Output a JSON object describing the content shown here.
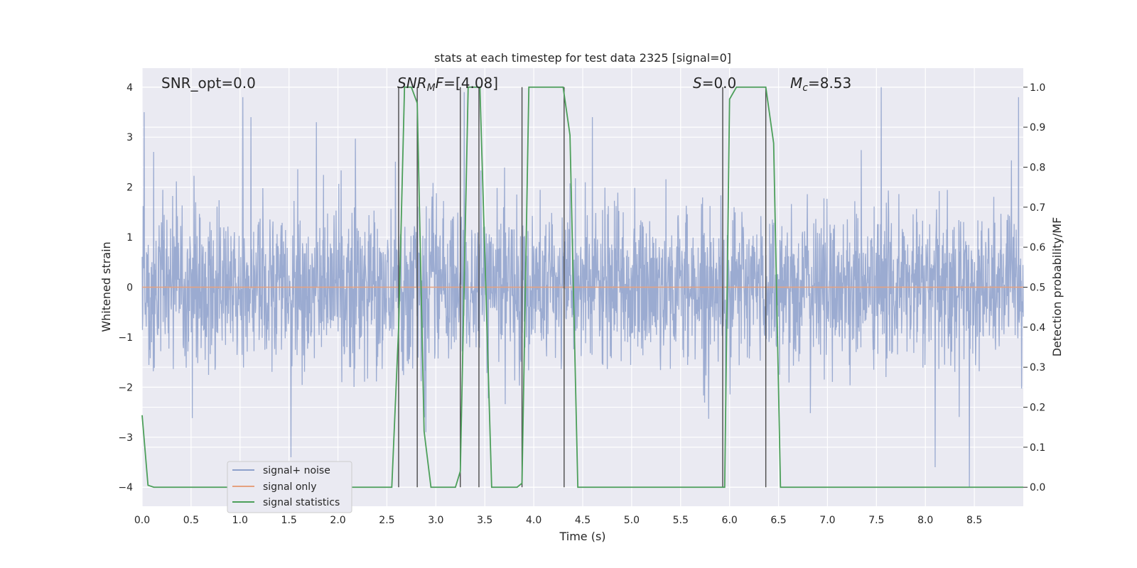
{
  "chart_data": {
    "type": "line",
    "title": "stats at each timestep for test data 2325 [signal=0]",
    "xlabel": "Time (s)",
    "ylabel": "Whitened strain",
    "ylabel_right": "Detection probability/MF",
    "xlim": [
      0,
      9
    ],
    "ylim": [
      -4.38,
      4.38
    ],
    "ylim_right": [
      -0.0475,
      1.0475
    ],
    "x_ticks": [
      0.0,
      0.5,
      1.0,
      1.5,
      2.0,
      2.5,
      3.0,
      3.5,
      4.0,
      4.5,
      5.0,
      5.5,
      6.0,
      6.5,
      7.0,
      7.5,
      8.0,
      8.5
    ],
    "x_tick_labels": [
      "0.0",
      "0.5",
      "1.0",
      "1.5",
      "2.0",
      "2.5",
      "3.0",
      "3.5",
      "4.0",
      "4.5",
      "5.0",
      "5.5",
      "6.0",
      "6.5",
      "7.0",
      "7.5",
      "8.0",
      "8.5"
    ],
    "y_ticks": [
      -4,
      -3,
      -2,
      -1,
      0,
      1,
      2,
      3,
      4
    ],
    "y_tick_labels": [
      "−4",
      "−3",
      "−2",
      "−1",
      "0",
      "1",
      "2",
      "3",
      "4"
    ],
    "y_right_ticks": [
      0.0,
      0.1,
      0.2,
      0.3,
      0.4,
      0.5,
      0.6,
      0.7,
      0.8,
      0.9,
      1.0
    ],
    "y_right_tick_labels": [
      "0.0",
      "0.1",
      "0.2",
      "0.3",
      "0.4",
      "0.5",
      "0.6",
      "0.7",
      "0.8",
      "0.9",
      "1.0"
    ],
    "grid": true,
    "legend_position": "lower-left",
    "annotations": {
      "snr_opt": "SNR_opt=0.0",
      "snr_mf_prefix": "SNR",
      "snr_mf_sub": "M",
      "snr_mf_italic": "F",
      "snr_mf_value": "=[4.08]",
      "s_symbol": "S",
      "s_value": "=0.0",
      "mc_symbol": "M",
      "mc_sub": "c",
      "mc_value": "=8.53"
    },
    "series": [
      {
        "name": "signal+ noise",
        "color": "#8da0cb",
        "axis": "left",
        "noise_band": {
          "typical_abs_max": 1.6,
          "dense_abs": 0.8
        },
        "peaks": [
          {
            "x": 0.02,
            "y": 3.5
          },
          {
            "x": 1.03,
            "y": 3.8
          },
          {
            "x": 1.11,
            "y": 3.4
          },
          {
            "x": 1.78,
            "y": 3.3
          },
          {
            "x": 3.29,
            "y": 3.9
          },
          {
            "x": 4.6,
            "y": 3.4
          },
          {
            "x": 7.55,
            "y": 4.0
          },
          {
            "x": 8.95,
            "y": 3.8
          },
          {
            "x": 1.52,
            "y": -3.4
          },
          {
            "x": 8.1,
            "y": -3.6
          },
          {
            "x": 8.45,
            "y": -4.0
          },
          {
            "x": 2.9,
            "y": -2.9
          }
        ]
      },
      {
        "name": "signal only",
        "color": "#e5a17f",
        "axis": "left",
        "x": [
          0.0,
          9.0
        ],
        "y": [
          0.0,
          0.0
        ]
      },
      {
        "name": "signal statistics",
        "color": "#4c9f5a",
        "axis": "right",
        "x": [
          0.0,
          0.06,
          0.12,
          2.55,
          2.62,
          2.68,
          2.75,
          2.81,
          2.88,
          2.95,
          3.05,
          3.2,
          3.25,
          3.33,
          3.45,
          3.57,
          3.7,
          3.83,
          3.88,
          3.95,
          4.0,
          4.3,
          4.37,
          4.45,
          4.5,
          5.95,
          6.0,
          6.07,
          6.14,
          6.37,
          6.45,
          6.52,
          6.6,
          9.0
        ],
        "y": [
          0.18,
          0.005,
          0.0,
          0.0,
          0.4,
          1.0,
          1.0,
          0.96,
          0.14,
          0.0,
          0.0,
          0.0,
          0.04,
          1.0,
          1.0,
          0.0,
          0.0,
          0.0,
          0.01,
          1.0,
          1.0,
          1.0,
          0.88,
          0.0,
          0.0,
          0.0,
          0.97,
          1.0,
          1.0,
          1.0,
          0.86,
          0.0,
          0.0,
          0.0
        ]
      }
    ],
    "vertical_markers": {
      "color": "#4a4a4a",
      "x": [
        2.62,
        2.81,
        3.25,
        3.44,
        3.88,
        4.31,
        5.93,
        6.37
      ],
      "y_top": 4.0,
      "y_bottom": -4.0
    }
  }
}
